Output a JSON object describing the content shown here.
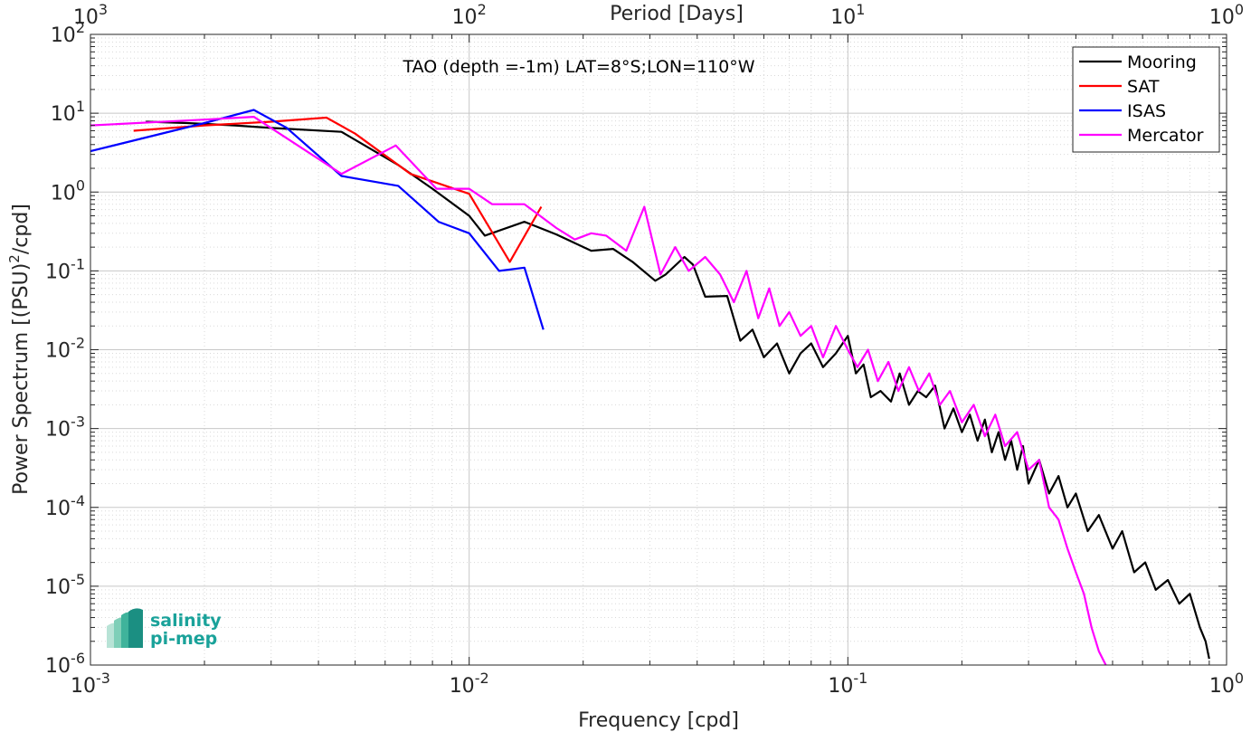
{
  "chart_data": {
    "type": "line",
    "title": "TAO (depth =-1m) LAT=8°S;LON=110°W",
    "xlabel": "Frequency [cpd]",
    "ylabel": "Power Spectrum [(PSU)",
    "ylabel_sup": "2",
    "ylabel_tail": "/cpd]",
    "top_xlabel": "Period [Days]",
    "xscale": "log",
    "yscale": "log",
    "xlim": [
      0.001,
      1
    ],
    "ylim": [
      1e-06,
      100
    ],
    "grid": true,
    "legend_position": "top-right",
    "x_ticks": [
      {
        "value": 0.001,
        "base": "10",
        "exp": "-3"
      },
      {
        "value": 0.01,
        "base": "10",
        "exp": "-2"
      },
      {
        "value": 0.1,
        "base": "10",
        "exp": "-1"
      },
      {
        "value": 1,
        "base": "10",
        "exp": "0"
      }
    ],
    "y_ticks": [
      {
        "value": 1e-06,
        "base": "10",
        "exp": "-6"
      },
      {
        "value": 1e-05,
        "base": "10",
        "exp": "-5"
      },
      {
        "value": 0.0001,
        "base": "10",
        "exp": "-4"
      },
      {
        "value": 0.001,
        "base": "10",
        "exp": "-3"
      },
      {
        "value": 0.01,
        "base": "10",
        "exp": "-2"
      },
      {
        "value": 0.1,
        "base": "10",
        "exp": "-1"
      },
      {
        "value": 1,
        "base": "10",
        "exp": "0"
      },
      {
        "value": 10,
        "base": "10",
        "exp": "1"
      },
      {
        "value": 100,
        "base": "10",
        "exp": "2"
      }
    ],
    "top_ticks": [
      {
        "value": 0.001,
        "base": "10",
        "exp": "3"
      },
      {
        "value": 0.01,
        "base": "10",
        "exp": "2"
      },
      {
        "value": 0.1,
        "base": "10",
        "exp": "1"
      },
      {
        "value": 1,
        "base": "10",
        "exp": "0"
      }
    ],
    "series": [
      {
        "name": "Mooring",
        "color": "#000000",
        "points": [
          [
            0.0014,
            7.8
          ],
          [
            0.0018,
            7.5
          ],
          [
            0.0024,
            7.0
          ],
          [
            0.003,
            6.5
          ],
          [
            0.0046,
            5.8
          ],
          [
            0.0065,
            2.2
          ],
          [
            0.008,
            1.1
          ],
          [
            0.01,
            0.5
          ],
          [
            0.011,
            0.28
          ],
          [
            0.014,
            0.42
          ],
          [
            0.017,
            0.29
          ],
          [
            0.021,
            0.18
          ],
          [
            0.024,
            0.19
          ],
          [
            0.027,
            0.13
          ],
          [
            0.031,
            0.075
          ],
          [
            0.033,
            0.09
          ],
          [
            0.037,
            0.15
          ],
          [
            0.039,
            0.12
          ],
          [
            0.042,
            0.047
          ],
          [
            0.048,
            0.048
          ],
          [
            0.052,
            0.013
          ],
          [
            0.056,
            0.018
          ],
          [
            0.06,
            0.008
          ],
          [
            0.065,
            0.012
          ],
          [
            0.07,
            0.005
          ],
          [
            0.075,
            0.009
          ],
          [
            0.08,
            0.012
          ],
          [
            0.086,
            0.006
          ],
          [
            0.093,
            0.009
          ],
          [
            0.1,
            0.015
          ],
          [
            0.105,
            0.005
          ],
          [
            0.11,
            0.0065
          ],
          [
            0.115,
            0.0025
          ],
          [
            0.122,
            0.003
          ],
          [
            0.13,
            0.0022
          ],
          [
            0.137,
            0.005
          ],
          [
            0.145,
            0.002
          ],
          [
            0.153,
            0.003
          ],
          [
            0.161,
            0.0025
          ],
          [
            0.17,
            0.0035
          ],
          [
            0.18,
            0.001
          ],
          [
            0.19,
            0.0018
          ],
          [
            0.2,
            0.0009
          ],
          [
            0.21,
            0.0015
          ],
          [
            0.22,
            0.0007
          ],
          [
            0.23,
            0.0013
          ],
          [
            0.24,
            0.0005
          ],
          [
            0.25,
            0.0009
          ],
          [
            0.26,
            0.0004
          ],
          [
            0.27,
            0.0007
          ],
          [
            0.28,
            0.0003
          ],
          [
            0.29,
            0.0006
          ],
          [
            0.3,
            0.0002
          ],
          [
            0.32,
            0.0004
          ],
          [
            0.34,
            0.00015
          ],
          [
            0.36,
            0.00025
          ],
          [
            0.38,
            0.0001
          ],
          [
            0.4,
            0.00015
          ],
          [
            0.43,
            5e-05
          ],
          [
            0.46,
            8e-05
          ],
          [
            0.5,
            3e-05
          ],
          [
            0.53,
            5e-05
          ],
          [
            0.57,
            1.5e-05
          ],
          [
            0.61,
            2e-05
          ],
          [
            0.65,
            9e-06
          ],
          [
            0.7,
            1.2e-05
          ],
          [
            0.75,
            6e-06
          ],
          [
            0.8,
            8e-06
          ],
          [
            0.85,
            3e-06
          ],
          [
            0.88,
            2e-06
          ],
          [
            0.9,
            1.2e-06
          ]
        ]
      },
      {
        "name": "SAT",
        "color": "#ff0000",
        "points": [
          [
            0.0013,
            6.0
          ],
          [
            0.002,
            7.0
          ],
          [
            0.003,
            7.8
          ],
          [
            0.0042,
            8.8
          ],
          [
            0.005,
            5.5
          ],
          [
            0.007,
            1.7
          ],
          [
            0.01,
            0.95
          ],
          [
            0.0128,
            0.13
          ],
          [
            0.0155,
            0.65
          ]
        ]
      },
      {
        "name": "ISAS",
        "color": "#0000ff",
        "points": [
          [
            0.001,
            3.3
          ],
          [
            0.002,
            7.5
          ],
          [
            0.0027,
            11.0
          ],
          [
            0.0033,
            6.5
          ],
          [
            0.0046,
            1.6
          ],
          [
            0.0065,
            1.2
          ],
          [
            0.0083,
            0.42
          ],
          [
            0.01,
            0.3
          ],
          [
            0.012,
            0.1
          ],
          [
            0.014,
            0.11
          ],
          [
            0.0157,
            0.018
          ]
        ]
      },
      {
        "name": "Mercator",
        "color": "#ff00ff",
        "points": [
          [
            0.001,
            7.0
          ],
          [
            0.002,
            8.3
          ],
          [
            0.0027,
            9.0
          ],
          [
            0.0046,
            1.7
          ],
          [
            0.0064,
            3.9
          ],
          [
            0.0082,
            1.1
          ],
          [
            0.01,
            1.1
          ],
          [
            0.0115,
            0.7
          ],
          [
            0.014,
            0.7
          ],
          [
            0.017,
            0.35
          ],
          [
            0.019,
            0.25
          ],
          [
            0.021,
            0.3
          ],
          [
            0.023,
            0.28
          ],
          [
            0.026,
            0.18
          ],
          [
            0.029,
            0.65
          ],
          [
            0.032,
            0.09
          ],
          [
            0.035,
            0.2
          ],
          [
            0.038,
            0.1
          ],
          [
            0.042,
            0.15
          ],
          [
            0.046,
            0.09
          ],
          [
            0.05,
            0.04
          ],
          [
            0.054,
            0.1
          ],
          [
            0.058,
            0.025
          ],
          [
            0.062,
            0.06
          ],
          [
            0.066,
            0.02
          ],
          [
            0.07,
            0.03
          ],
          [
            0.075,
            0.015
          ],
          [
            0.08,
            0.02
          ],
          [
            0.086,
            0.008
          ],
          [
            0.093,
            0.02
          ],
          [
            0.1,
            0.01
          ],
          [
            0.106,
            0.006
          ],
          [
            0.113,
            0.01
          ],
          [
            0.12,
            0.004
          ],
          [
            0.128,
            0.007
          ],
          [
            0.136,
            0.003
          ],
          [
            0.145,
            0.006
          ],
          [
            0.154,
            0.003
          ],
          [
            0.164,
            0.005
          ],
          [
            0.175,
            0.002
          ],
          [
            0.186,
            0.003
          ],
          [
            0.2,
            0.0012
          ],
          [
            0.215,
            0.002
          ],
          [
            0.23,
            0.0008
          ],
          [
            0.245,
            0.0015
          ],
          [
            0.26,
            0.0006
          ],
          [
            0.28,
            0.0009
          ],
          [
            0.3,
            0.0003
          ],
          [
            0.32,
            0.0004
          ],
          [
            0.34,
            0.0001
          ],
          [
            0.36,
            7e-05
          ],
          [
            0.38,
            3e-05
          ],
          [
            0.4,
            1.5e-05
          ],
          [
            0.42,
            8e-06
          ],
          [
            0.44,
            3e-06
          ],
          [
            0.46,
            1.5e-06
          ],
          [
            0.48,
            1e-06
          ]
        ]
      }
    ]
  },
  "logo": {
    "line1": "salinity",
    "line2": "pi-mep"
  }
}
